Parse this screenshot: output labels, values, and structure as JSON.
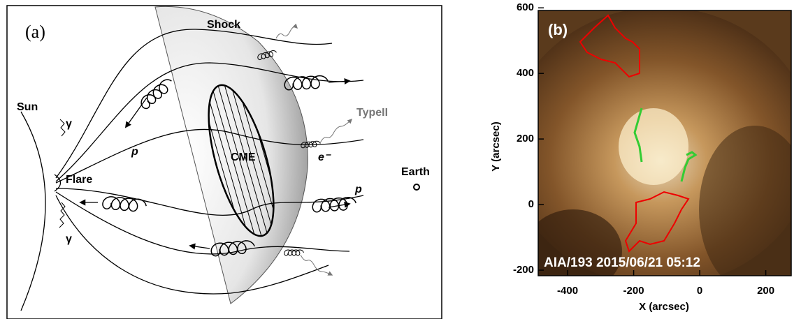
{
  "panel_a": {
    "label": "(a)",
    "shock": "Shock",
    "sun": "Sun",
    "gamma_top": "γ",
    "gamma_bottom": "γ",
    "flare": "Flare",
    "proton_left": "p",
    "proton_right": "p",
    "cme": "CME",
    "type_ii": "TypeII",
    "electron": "e⁻",
    "earth": "Earth"
  },
  "panel_b": {
    "label": "(b)",
    "caption": "AIA/193 2015/06/21 05:12",
    "x_label": "X (arcsec)",
    "y_label": "Y (arcsec)",
    "xlim": [
      -489,
      277
    ],
    "ylim": [
      -217,
      592
    ],
    "xticks": [
      -400,
      -200,
      0,
      200
    ],
    "yticks": [
      600,
      400,
      200,
      0,
      -200
    ]
  }
}
